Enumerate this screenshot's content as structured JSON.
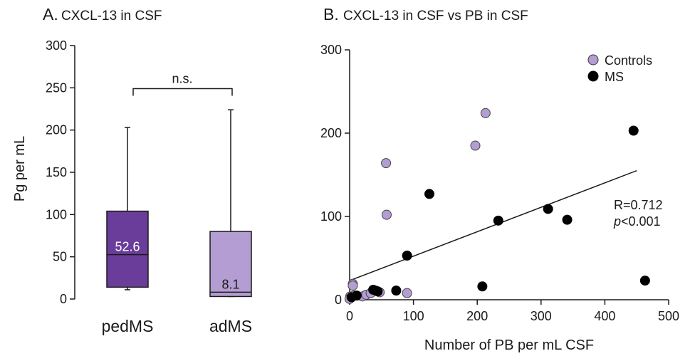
{
  "chart_data": [
    {
      "type": "box",
      "panel_letter": "A.",
      "title": "CXCL-13 in CSF",
      "ylabel": "Pg per mL",
      "ylim": [
        0,
        300
      ],
      "yticks": [
        0,
        50,
        100,
        150,
        200,
        250,
        300
      ],
      "categories": [
        "pedMS",
        "adMS"
      ],
      "boxes": [
        {
          "category": "pedMS",
          "whisker_low": 11,
          "q1": 14,
          "median": 52.6,
          "q3": 104,
          "whisker_high": 203,
          "median_label": "52.6",
          "color": "#6a3d9a",
          "median_label_color": "#ffffff"
        },
        {
          "category": "adMS",
          "whisker_low": 3,
          "q1": 3,
          "median": 8.1,
          "q3": 80,
          "whisker_high": 224,
          "median_label": "8.1",
          "color": "#b49dd2",
          "median_label_color": "#1a1a1a"
        }
      ],
      "significance": {
        "label": "n.s.",
        "y": 249
      }
    },
    {
      "type": "scatter",
      "panel_letter": "B.",
      "title": "CXCL-13 in CSF vs PB in CSF",
      "xlabel": "Number of PB per mL CSF",
      "ylabel": "",
      "xlim": [
        0,
        500
      ],
      "ylim": [
        0,
        300
      ],
      "xticks": [
        0,
        100,
        200,
        300,
        400,
        500
      ],
      "yticks": [
        0,
        100,
        200,
        300
      ],
      "legend_position": "top-right",
      "series": [
        {
          "name": "Controls",
          "color": "#b49dd2",
          "points": [
            [
              213,
              224
            ],
            [
              197,
              185
            ],
            [
              57,
              164
            ],
            [
              58,
              102
            ],
            [
              5,
              19
            ],
            [
              5,
              17
            ],
            [
              1,
              4
            ],
            [
              0,
              1
            ],
            [
              7,
              5
            ],
            [
              20,
              4
            ],
            [
              26,
              6
            ],
            [
              33,
              8
            ],
            [
              41,
              11
            ],
            [
              47,
              9
            ],
            [
              90,
              8
            ]
          ]
        },
        {
          "name": "MS",
          "color": "#000000",
          "points": [
            [
              445,
              203
            ],
            [
              125,
              127
            ],
            [
              311,
              109
            ],
            [
              341,
              96
            ],
            [
              233,
              95
            ],
            [
              90,
              53
            ],
            [
              463,
              23
            ],
            [
              208,
              16
            ],
            [
              73,
              11
            ],
            [
              37,
              12
            ],
            [
              44,
              10
            ],
            [
              11,
              5
            ],
            [
              3,
              3
            ]
          ]
        }
      ],
      "fit_line": {
        "x": [
          0,
          450
        ],
        "y": [
          23,
          155
        ]
      },
      "stats": {
        "r_text": "R=0.712",
        "p_italic": "p",
        "p_rest": "<0.001"
      }
    }
  ]
}
